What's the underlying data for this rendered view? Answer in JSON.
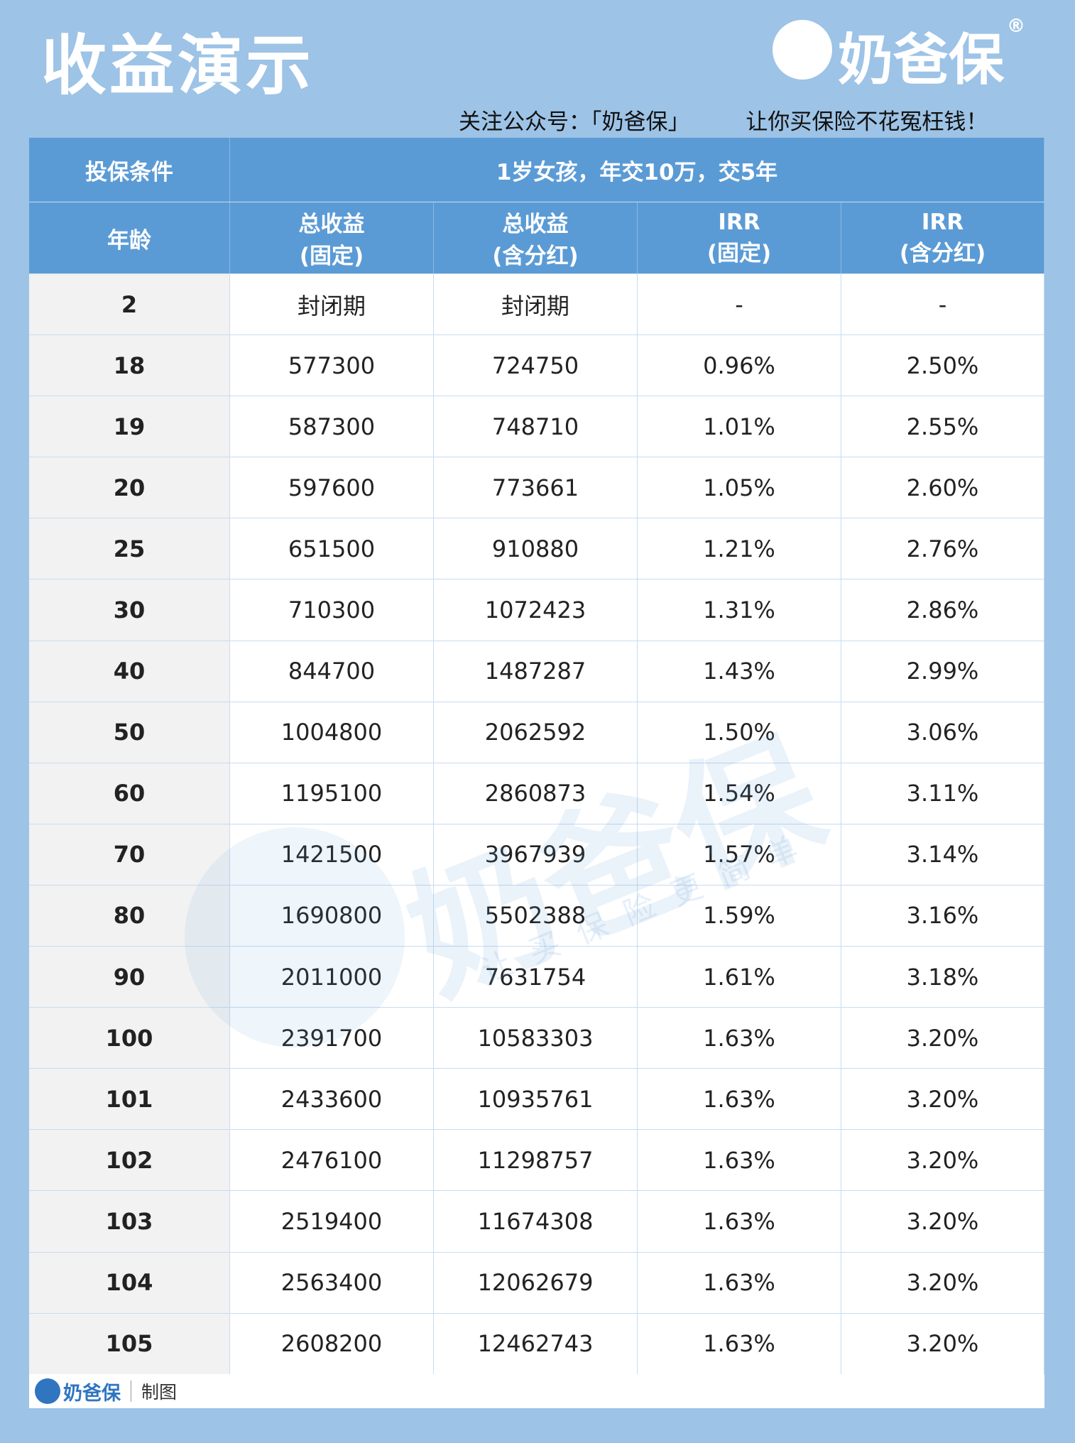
{
  "header": {
    "title": "收益演示",
    "brand": "奶爸保",
    "registered": "®",
    "notice": "关注公众号：「奶爸保」",
    "slogan": "让你买保险不花冤枉钱！"
  },
  "table": {
    "condition_label": "投保条件",
    "condition": "1岁女孩，年交10万，交5年",
    "columns": [
      [
        "年龄"
      ],
      [
        "总收益",
        "(固定)"
      ],
      [
        "总收益",
        "(含分红)"
      ],
      [
        "IRR",
        "(固定)"
      ],
      [
        "IRR",
        "(含分红)"
      ]
    ],
    "rows": [
      [
        "2",
        "封闭期",
        "封闭期",
        "-",
        "-"
      ],
      [
        "18",
        "577300",
        "724750",
        "0.96%",
        "2.50%"
      ],
      [
        "19",
        "587300",
        "748710",
        "1.01%",
        "2.55%"
      ],
      [
        "20",
        "597600",
        "773661",
        "1.05%",
        "2.60%"
      ],
      [
        "25",
        "651500",
        "910880",
        "1.21%",
        "2.76%"
      ],
      [
        "30",
        "710300",
        "1072423",
        "1.31%",
        "2.86%"
      ],
      [
        "40",
        "844700",
        "1487287",
        "1.43%",
        "2.99%"
      ],
      [
        "50",
        "1004800",
        "2062592",
        "1.50%",
        "3.06%"
      ],
      [
        "60",
        "1195100",
        "2860873",
        "1.54%",
        "3.11%"
      ],
      [
        "70",
        "1421500",
        "3967939",
        "1.57%",
        "3.14%"
      ],
      [
        "80",
        "1690800",
        "5502388",
        "1.59%",
        "3.16%"
      ],
      [
        "90",
        "2011000",
        "7631754",
        "1.61%",
        "3.18%"
      ],
      [
        "100",
        "2391700",
        "10583303",
        "1.63%",
        "3.20%"
      ],
      [
        "101",
        "2433600",
        "10935761",
        "1.63%",
        "3.20%"
      ],
      [
        "102",
        "2476100",
        "11298757",
        "1.63%",
        "3.20%"
      ],
      [
        "103",
        "2519400",
        "11674308",
        "1.63%",
        "3.20%"
      ],
      [
        "104",
        "2563400",
        "12062679",
        "1.63%",
        "3.20%"
      ],
      [
        "105",
        "2608200",
        "12462743",
        "1.63%",
        "3.20%"
      ]
    ]
  },
  "watermark": {
    "brand": "奶爸保",
    "slogan": "让买保险更简单"
  },
  "footer": {
    "brand": "奶爸保",
    "text": "制图"
  }
}
